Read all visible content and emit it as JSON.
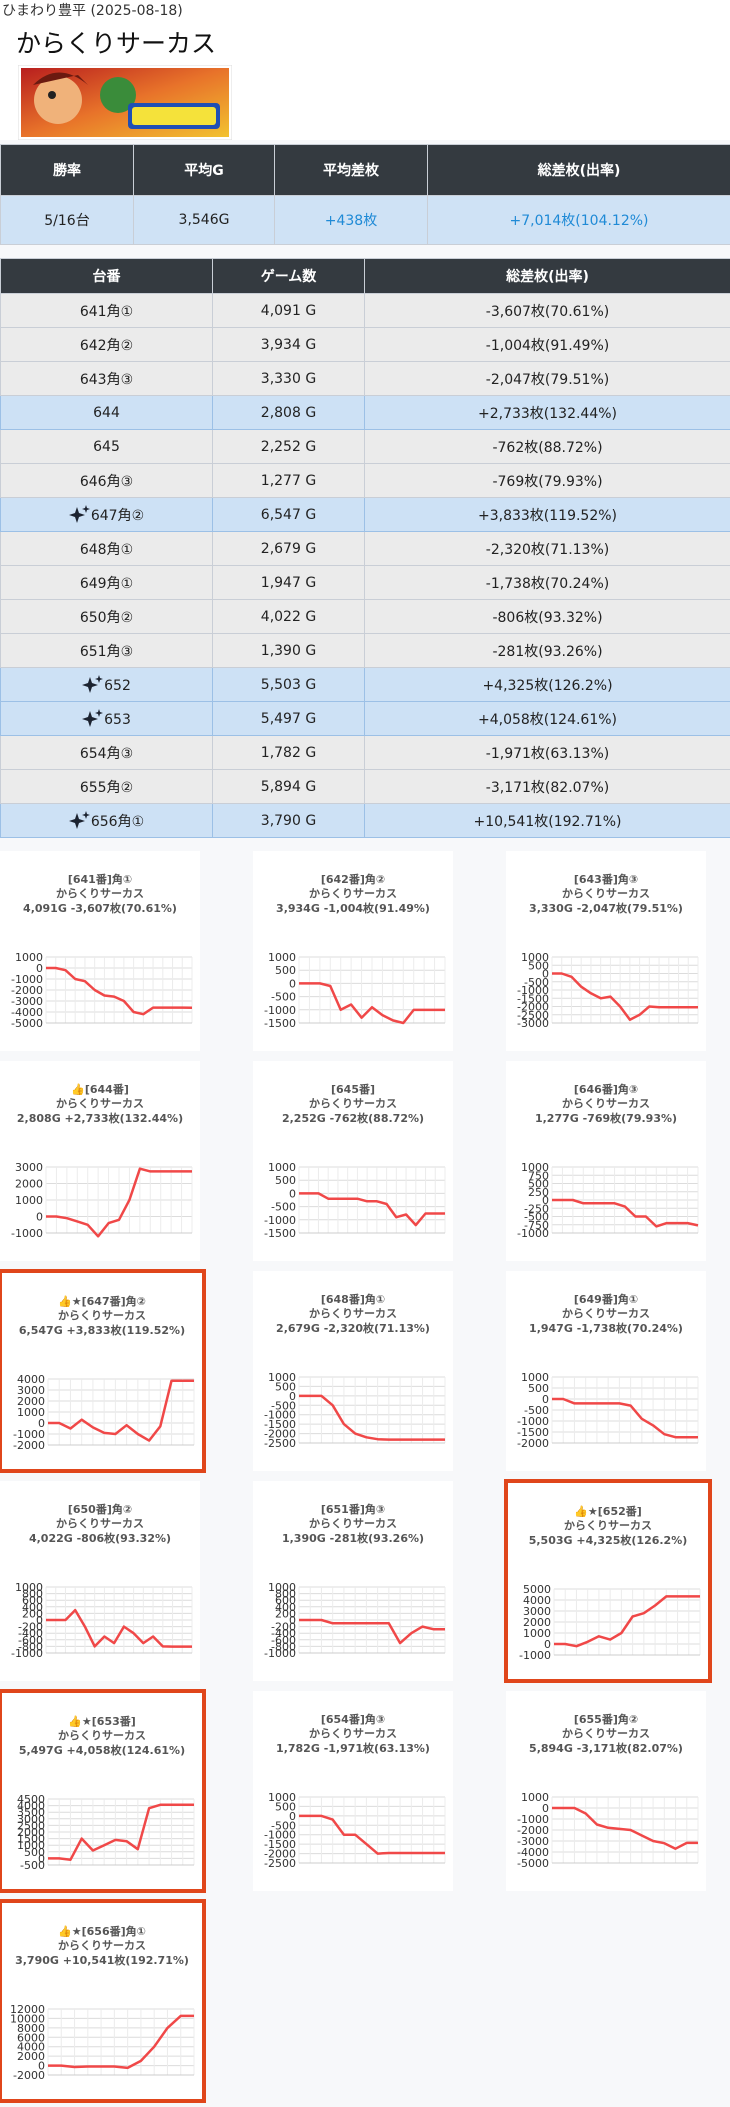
{
  "header": {
    "shop": "ひまわり豊平 (2025-08-18)",
    "title": "からくりサーカス"
  },
  "summary": {
    "headers": [
      "勝率",
      "平均G",
      "平均差枚",
      "総差枚(出率)"
    ],
    "values": [
      "5/16台",
      "3,546G",
      "+438枚",
      "+7,014枚(104.12%)"
    ]
  },
  "table": {
    "headers": [
      "台番",
      "ゲーム数",
      "総差枚(出率)"
    ],
    "rows": [
      {
        "cells": [
          "641角①",
          "4,091 G",
          "-3,607枚(70.61%)"
        ],
        "highlight": false,
        "icon": false
      },
      {
        "cells": [
          "642角②",
          "3,934 G",
          "-1,004枚(91.49%)"
        ],
        "highlight": false,
        "icon": false
      },
      {
        "cells": [
          "643角③",
          "3,330 G",
          "-2,047枚(79.51%)"
        ],
        "highlight": false,
        "icon": false
      },
      {
        "cells": [
          "644",
          "2,808 G",
          "+2,733枚(132.44%)"
        ],
        "highlight": true,
        "icon": false
      },
      {
        "cells": [
          "645",
          "2,252 G",
          "-762枚(88.72%)"
        ],
        "highlight": false,
        "icon": false
      },
      {
        "cells": [
          "646角③",
          "1,277 G",
          "-769枚(79.93%)"
        ],
        "highlight": false,
        "icon": false
      },
      {
        "cells": [
          "647角②",
          "6,547 G",
          "+3,833枚(119.52%)"
        ],
        "highlight": true,
        "icon": true
      },
      {
        "cells": [
          "648角①",
          "2,679 G",
          "-2,320枚(71.13%)"
        ],
        "highlight": false,
        "icon": false
      },
      {
        "cells": [
          "649角①",
          "1,947 G",
          "-1,738枚(70.24%)"
        ],
        "highlight": false,
        "icon": false
      },
      {
        "cells": [
          "650角②",
          "4,022 G",
          "-806枚(93.32%)"
        ],
        "highlight": false,
        "icon": false
      },
      {
        "cells": [
          "651角③",
          "1,390 G",
          "-281枚(93.26%)"
        ],
        "highlight": false,
        "icon": false
      },
      {
        "cells": [
          "652",
          "5,503 G",
          "+4,325枚(126.2%)"
        ],
        "highlight": true,
        "icon": true
      },
      {
        "cells": [
          "653",
          "5,497 G",
          "+4,058枚(124.61%)"
        ],
        "highlight": true,
        "icon": true
      },
      {
        "cells": [
          "654角③",
          "1,782 G",
          "-1,971枚(63.13%)"
        ],
        "highlight": false,
        "icon": false
      },
      {
        "cells": [
          "655角②",
          "5,894 G",
          "-3,171枚(82.07%)"
        ],
        "highlight": false,
        "icon": false
      },
      {
        "cells": [
          "656角①",
          "3,790 G",
          "+10,541枚(192.71%)"
        ],
        "highlight": true,
        "icon": true
      }
    ]
  },
  "chart_data": [
    {
      "type": "line",
      "title": "[641番]角①",
      "subtitle": "からくりサーカス",
      "caption": "4,091G -3,607枚(70.61%)",
      "highlight": false,
      "color": "#f04848",
      "ylim": [
        -5000,
        1000
      ],
      "yticks": [
        1000,
        0,
        -1000,
        -2000,
        -3000,
        -4000,
        -5000
      ],
      "grid": true,
      "values": [
        0,
        0,
        -200,
        -1000,
        -1200,
        -2000,
        -2500,
        -2600,
        -3000,
        -4000,
        -4200,
        -3600,
        -3600,
        -3600,
        -3600,
        -3607
      ]
    },
    {
      "type": "line",
      "title": "[642番]角②",
      "subtitle": "からくりサーカス",
      "caption": "3,934G -1,004枚(91.49%)",
      "highlight": false,
      "color": "#f04848",
      "ylim": [
        -1500,
        1000
      ],
      "yticks": [
        1000,
        500,
        0,
        -500,
        -1000,
        -1500
      ],
      "grid": true,
      "values": [
        0,
        0,
        0,
        -100,
        -1000,
        -800,
        -1300,
        -900,
        -1200,
        -1400,
        -1500,
        -1004,
        -1004,
        -1004,
        -1004
      ]
    },
    {
      "type": "line",
      "title": "[643番]角③",
      "subtitle": "からくりサーカス",
      "caption": "3,330G -2,047枚(79.51%)",
      "highlight": false,
      "color": "#f04848",
      "ylim": [
        -3000,
        1000
      ],
      "yticks": [
        1000,
        500,
        0,
        -500,
        -1000,
        -1500,
        -2000,
        -2500,
        -3000
      ],
      "grid": true,
      "values": [
        0,
        0,
        -200,
        -800,
        -1200,
        -1500,
        -1400,
        -2000,
        -2800,
        -2500,
        -2000,
        -2047,
        -2047,
        -2047,
        -2047,
        -2047
      ]
    },
    {
      "type": "line",
      "title": "👍[644番]",
      "subtitle": "からくりサーカス",
      "caption": "2,808G +2,733枚(132.44%)",
      "highlight": false,
      "color": "#f04848",
      "ylim": [
        -1000,
        3000
      ],
      "yticks": [
        3000,
        2000,
        1000,
        0,
        -1000
      ],
      "grid": true,
      "values": [
        0,
        0,
        -100,
        -300,
        -500,
        -1200,
        -400,
        -200,
        1000,
        2900,
        2733,
        2733,
        2733,
        2733,
        2733
      ]
    },
    {
      "type": "line",
      "title": "[645番]",
      "subtitle": "からくりサーカス",
      "caption": "2,252G -762枚(88.72%)",
      "highlight": false,
      "color": "#f04848",
      "ylim": [
        -1500,
        1000
      ],
      "yticks": [
        1000,
        500,
        0,
        -500,
        -1000,
        -1500
      ],
      "grid": true,
      "values": [
        0,
        0,
        0,
        -200,
        -200,
        -200,
        -200,
        -300,
        -300,
        -400,
        -900,
        -800,
        -1200,
        -762,
        -762,
        -762
      ]
    },
    {
      "type": "line",
      "title": "[646番]角③",
      "subtitle": "からくりサーカス",
      "caption": "1,277G -769枚(79.93%)",
      "highlight": false,
      "color": "#f04848",
      "ylim": [
        -1000,
        1000
      ],
      "yticks": [
        1000,
        750,
        500,
        250,
        0,
        -250,
        -500,
        -750,
        -1000
      ],
      "grid": true,
      "values": [
        0,
        0,
        0,
        -100,
        -100,
        -100,
        -100,
        -200,
        -500,
        -500,
        -800,
        -700,
        -700,
        -700,
        -769
      ]
    },
    {
      "type": "line",
      "title": "👍★[647番]角②",
      "subtitle": "からくりサーカス",
      "caption": "6,547G +3,833枚(119.52%)",
      "highlight": true,
      "color": "#f04848",
      "ylim": [
        -2000,
        4000
      ],
      "yticks": [
        4000,
        3000,
        2000,
        1000,
        0,
        -1000,
        -2000
      ],
      "grid": true,
      "values": [
        0,
        0,
        -500,
        300,
        -400,
        -900,
        -1000,
        -200,
        -1000,
        -1600,
        -300,
        3833,
        3833,
        3833
      ]
    },
    {
      "type": "line",
      "title": "[648番]角①",
      "subtitle": "からくりサーカス",
      "caption": "2,679G -2,320枚(71.13%)",
      "highlight": false,
      "color": "#f04848",
      "ylim": [
        -2500,
        1000
      ],
      "yticks": [
        1000,
        500,
        0,
        -500,
        -1000,
        -1500,
        -2000,
        -2500
      ],
      "grid": true,
      "values": [
        0,
        0,
        0,
        -500,
        -1500,
        -2000,
        -2200,
        -2300,
        -2320,
        -2320,
        -2320,
        -2320,
        -2320,
        -2320
      ]
    },
    {
      "type": "line",
      "title": "[649番]角①",
      "subtitle": "からくりサーカス",
      "caption": "1,947G -1,738枚(70.24%)",
      "highlight": false,
      "color": "#f04848",
      "ylim": [
        -2000,
        1000
      ],
      "yticks": [
        1000,
        500,
        0,
        -500,
        -1000,
        -1500,
        -2000
      ],
      "grid": true,
      "values": [
        0,
        0,
        -200,
        -200,
        -200,
        -200,
        -200,
        -300,
        -900,
        -1200,
        -1600,
        -1738,
        -1738,
        -1738
      ]
    },
    {
      "type": "line",
      "title": "[650番]角②",
      "subtitle": "からくりサーカス",
      "caption": "4,022G -806枚(93.32%)",
      "highlight": false,
      "color": "#f04848",
      "ylim": [
        -1000,
        1000
      ],
      "yticks": [
        1000,
        800,
        600,
        400,
        200,
        0,
        -200,
        -400,
        -600,
        -800,
        -1000
      ],
      "grid": true,
      "values": [
        0,
        0,
        0,
        300,
        -200,
        -800,
        -500,
        -700,
        -200,
        -400,
        -700,
        -500,
        -800,
        -806,
        -806,
        -806
      ]
    },
    {
      "type": "line",
      "title": "[651番]角③",
      "subtitle": "からくりサーカス",
      "caption": "1,390G -281枚(93.26%)",
      "highlight": false,
      "color": "#f04848",
      "ylim": [
        -1000,
        1000
      ],
      "yticks": [
        1000,
        800,
        600,
        400,
        200,
        0,
        -200,
        -400,
        -600,
        -800,
        -1000
      ],
      "grid": true,
      "values": [
        0,
        0,
        0,
        -100,
        -100,
        -100,
        -100,
        -100,
        -100,
        -700,
        -400,
        -200,
        -281,
        -281
      ]
    },
    {
      "type": "line",
      "title": "👍★[652番]",
      "subtitle": "からくりサーカス",
      "caption": "5,503G +4,325枚(126.2%)",
      "highlight": true,
      "color": "#f04848",
      "ylim": [
        -1000,
        5000
      ],
      "yticks": [
        5000,
        4000,
        3000,
        2000,
        1000,
        0,
        -1000
      ],
      "grid": true,
      "values": [
        0,
        0,
        -200,
        200,
        700,
        400,
        1000,
        2500,
        2800,
        3500,
        4325,
        4325,
        4325,
        4325
      ]
    },
    {
      "type": "line",
      "title": "👍★[653番]",
      "subtitle": "からくりサーカス",
      "caption": "5,497G +4,058枚(124.61%)",
      "highlight": true,
      "color": "#f04848",
      "ylim": [
        -500,
        4500
      ],
      "yticks": [
        4500,
        4000,
        3500,
        3000,
        2500,
        2000,
        1500,
        1000,
        500,
        0,
        -500
      ],
      "grid": true,
      "values": [
        0,
        0,
        -100,
        1500,
        600,
        1000,
        1400,
        1300,
        700,
        3800,
        4058,
        4058,
        4058,
        4058
      ]
    },
    {
      "type": "line",
      "title": "[654番]角③",
      "subtitle": "からくりサーカス",
      "caption": "1,782G -1,971枚(63.13%)",
      "highlight": false,
      "color": "#f04848",
      "ylim": [
        -2500,
        1000
      ],
      "yticks": [
        1000,
        500,
        0,
        -500,
        -1000,
        -1500,
        -2000,
        -2500
      ],
      "grid": true,
      "values": [
        0,
        0,
        0,
        -200,
        -1000,
        -1000,
        -1500,
        -2000,
        -1971,
        -1971,
        -1971,
        -1971,
        -1971,
        -1971
      ]
    },
    {
      "type": "line",
      "title": "[655番]角②",
      "subtitle": "からくりサーカス",
      "caption": "5,894G -3,171枚(82.07%)",
      "highlight": false,
      "color": "#f04848",
      "ylim": [
        -5000,
        1000
      ],
      "yticks": [
        1000,
        0,
        -1000,
        -2000,
        -3000,
        -4000,
        -5000
      ],
      "grid": true,
      "values": [
        0,
        0,
        0,
        -500,
        -1500,
        -1800,
        -1900,
        -2000,
        -2500,
        -3000,
        -3200,
        -3700,
        -3171,
        -3171
      ]
    },
    {
      "type": "line",
      "title": "👍★[656番]角①",
      "subtitle": "からくりサーカス",
      "caption": "3,790G +10,541枚(192.71%)",
      "highlight": true,
      "color": "#f04848",
      "ylim": [
        -2000,
        12000
      ],
      "yticks": [
        12000,
        10000,
        8000,
        6000,
        4000,
        2000,
        0,
        -2000
      ],
      "grid": true,
      "values": [
        0,
        0,
        -300,
        -200,
        -200,
        -200,
        -500,
        1000,
        4000,
        8000,
        10541,
        10541
      ]
    }
  ]
}
